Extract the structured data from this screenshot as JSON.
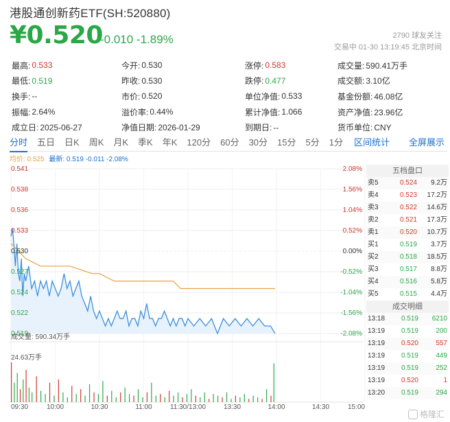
{
  "header": {
    "title": "港股通创新药ETF(SH:520880)",
    "price": "¥0.520",
    "change": "-0.010 -1.89%",
    "followers": "2790  球友关注",
    "trade_status": "交易中 01-30 13:19:45 北京时间"
  },
  "stats": [
    [
      {
        "label": "最高:",
        "value": "0.533",
        "color": "red"
      },
      {
        "label": "今开:",
        "value": "0.530",
        "color": ""
      },
      {
        "label": "涨停:",
        "value": "0.583",
        "color": "red"
      },
      {
        "label": "成交量:",
        "value": "590.41万手",
        "color": ""
      }
    ],
    [
      {
        "label": "最低:",
        "value": "0.519",
        "color": "green"
      },
      {
        "label": "昨收:",
        "value": "0.530",
        "color": ""
      },
      {
        "label": "跌停:",
        "value": "0.477",
        "color": "green"
      },
      {
        "label": "成交额:",
        "value": "3.10亿",
        "color": ""
      }
    ],
    [
      {
        "label": "换手:",
        "value": "--",
        "color": ""
      },
      {
        "label": "市价:",
        "value": "0.520",
        "color": ""
      },
      {
        "label": "单位净值:",
        "value": "0.533",
        "color": ""
      },
      {
        "label": "基金份额:",
        "value": "46.08亿",
        "color": ""
      }
    ],
    [
      {
        "label": "振幅:",
        "value": "2.64%",
        "color": ""
      },
      {
        "label": "溢价率:",
        "value": "0.44%",
        "color": ""
      },
      {
        "label": "累计净值:",
        "value": "1.066",
        "color": ""
      },
      {
        "label": "资产净值:",
        "value": "23.96亿",
        "color": ""
      }
    ],
    [
      {
        "label": "成立日:",
        "value": "2025-06-27",
        "color": ""
      },
      {
        "label": "净值日期:",
        "value": "2026-01-29",
        "color": ""
      },
      {
        "label": "到期日:",
        "value": "--",
        "color": ""
      },
      {
        "label": "货币单位:",
        "value": "CNY",
        "color": ""
      }
    ]
  ],
  "tabs": [
    "分时",
    "五日",
    "日K",
    "周K",
    "月K",
    "季K",
    "年K",
    "120分",
    "60分",
    "30分",
    "15分",
    "5分",
    "1分"
  ],
  "tab_links": {
    "range_stats": "区间统计",
    "fullscreen": "全屏展示"
  },
  "legend": {
    "avg": "均价: 0.525",
    "latest": "最新: 0.519 -0.011 -2.08%"
  },
  "colors": {
    "up": "#d2372b",
    "down": "#2aa847",
    "price_line": "#3a8fdb",
    "avg_line": "#e8a13b",
    "accent": "#1a6fd0"
  },
  "chart_data": {
    "type": "line",
    "y_ticks": [
      "0.541",
      "0.538",
      "0.536",
      "0.533",
      "0.530",
      "0.527",
      "0.524",
      "0.522",
      "0.519"
    ],
    "y_pct_ticks": [
      "2.08%",
      "1.56%",
      "1.04%",
      "0.52%",
      "0.00%",
      "-0.52%",
      "-1.04%",
      "-1.56%",
      "-2.08%"
    ],
    "x_ticks": [
      "09:30",
      "10:00",
      "10:30",
      "11:00",
      "11:30/13:00",
      "13:30",
      "14:00",
      "14:30",
      "15:00"
    ],
    "ylim": [
      0.519,
      0.541
    ],
    "prev_close": 0.53,
    "volume_label": "成交量: 590.34万手",
    "volume_max_label": "24.63万手",
    "series": [
      {
        "name": "最新",
        "x": [
          0,
          1,
          2,
          3,
          4,
          5,
          6,
          7,
          8,
          9,
          10,
          12,
          14,
          16,
          18,
          20,
          22,
          24,
          26,
          28,
          30,
          32,
          34,
          36,
          38,
          40,
          42,
          44,
          46,
          48,
          50,
          52,
          54,
          56,
          58,
          60,
          62,
          64,
          66,
          68,
          70,
          72,
          74,
          76,
          78,
          80,
          82,
          84,
          86,
          88,
          90,
          92,
          94,
          96,
          98,
          100,
          102,
          104,
          106,
          108,
          110,
          112,
          114,
          116,
          118,
          120,
          124,
          128,
          132,
          136,
          140,
          144,
          148,
          152,
          156,
          160,
          164,
          168,
          172,
          176,
          179
        ],
        "values": [
          0.532,
          0.533,
          0.531,
          0.528,
          0.531,
          0.527,
          0.526,
          0.529,
          0.524,
          0.527,
          0.526,
          0.528,
          0.525,
          0.526,
          0.524,
          0.526,
          0.525,
          0.526,
          0.524,
          0.526,
          0.525,
          0.524,
          0.525,
          0.527,
          0.525,
          0.526,
          0.524,
          0.525,
          0.526,
          0.524,
          0.523,
          0.522,
          0.524,
          0.522,
          0.521,
          0.522,
          0.521,
          0.52,
          0.521,
          0.52,
          0.521,
          0.522,
          0.521,
          0.521,
          0.522,
          0.52,
          0.521,
          0.521,
          0.52,
          0.522,
          0.521,
          0.523,
          0.521,
          0.521,
          0.52,
          0.521,
          0.521,
          0.522,
          0.521,
          0.52,
          0.521,
          0.52,
          0.521,
          0.521,
          0.52,
          0.521,
          0.52,
          0.521,
          0.52,
          0.521,
          0.519,
          0.521,
          0.52,
          0.521,
          0.52,
          0.521,
          0.52,
          0.521,
          0.52,
          0.52,
          0.519
        ]
      },
      {
        "name": "均价",
        "x": [
          0,
          10,
          20,
          30,
          40,
          55,
          60,
          70,
          80,
          100,
          110,
          115,
          120,
          140,
          160,
          179
        ],
        "values": [
          0.531,
          0.529,
          0.528,
          0.528,
          0.528,
          0.527,
          0.527,
          0.526,
          0.526,
          0.526,
          0.526,
          0.525,
          0.525,
          0.525,
          0.525,
          0.525
        ]
      }
    ],
    "volume": {
      "x": [
        0,
        2,
        4,
        6,
        8,
        10,
        12,
        14,
        17,
        20,
        23,
        26,
        29,
        32,
        35,
        38,
        41,
        44,
        47,
        50,
        53,
        56,
        59,
        62,
        65,
        68,
        71,
        74,
        77,
        80,
        83,
        86,
        89,
        92,
        95,
        98,
        101,
        104,
        107,
        110,
        113,
        116,
        119,
        122,
        125,
        128,
        131,
        134,
        137,
        140,
        143,
        146,
        149,
        152,
        155,
        158,
        161,
        164,
        167,
        170,
        173,
        176,
        178
      ],
      "values": [
        24.6,
        12,
        18,
        8,
        14,
        20,
        9,
        6,
        16,
        7,
        5,
        12,
        4,
        14,
        6,
        3,
        10,
        5,
        8,
        4,
        11,
        6,
        5,
        13,
        4,
        7,
        3,
        6,
        9,
        5,
        4,
        8,
        3,
        6,
        12,
        4,
        5,
        3,
        7,
        4,
        6,
        3,
        5,
        8,
        4,
        3,
        6,
        2,
        5,
        4,
        3,
        6,
        2,
        4,
        3,
        5,
        2,
        4,
        3,
        2,
        8,
        4,
        24
      ],
      "colors": [
        "r",
        "g",
        "g",
        "r",
        "g",
        "r",
        "g",
        "g",
        "r",
        "g",
        "g",
        "r",
        "g",
        "r",
        "g",
        "g",
        "r",
        "g",
        "r",
        "g",
        "g",
        "r",
        "g",
        "g",
        "r",
        "g",
        "g",
        "r",
        "g",
        "g",
        "r",
        "g",
        "g",
        "r",
        "g",
        "g",
        "r",
        "g",
        "r",
        "g",
        "g",
        "r",
        "g",
        "g",
        "r",
        "g",
        "g",
        "r",
        "g",
        "g",
        "r",
        "g",
        "g",
        "r",
        "g",
        "g",
        "r",
        "g",
        "g",
        "r",
        "g",
        "r",
        "g"
      ]
    }
  },
  "orderbook": {
    "title": "五档盘口",
    "rows": [
      {
        "side": "卖5",
        "price": "0.524",
        "vol": "9.2万",
        "color": "red"
      },
      {
        "side": "卖4",
        "price": "0.523",
        "vol": "17.2万",
        "color": "red"
      },
      {
        "side": "卖3",
        "price": "0.522",
        "vol": "14.6万",
        "color": "red"
      },
      {
        "side": "卖2",
        "price": "0.521",
        "vol": "17.3万",
        "color": "red"
      },
      {
        "side": "卖1",
        "price": "0.520",
        "vol": "10.7万",
        "color": "red"
      },
      {
        "side": "买1",
        "price": "0.519",
        "vol": "3.7万",
        "color": "green"
      },
      {
        "side": "买2",
        "price": "0.518",
        "vol": "18.5万",
        "color": "green"
      },
      {
        "side": "买3",
        "price": "0.517",
        "vol": "8.8万",
        "color": "green"
      },
      {
        "side": "买4",
        "price": "0.516",
        "vol": "5.8万",
        "color": "green"
      },
      {
        "side": "买5",
        "price": "0.515",
        "vol": "4.4万",
        "color": "green"
      }
    ]
  },
  "trades": {
    "title": "成交明细",
    "rows": [
      {
        "time": "13:18",
        "price": "0.519",
        "vol": "6210",
        "color": "green",
        "vcolor": "green"
      },
      {
        "time": "13:19",
        "price": "0.519",
        "vol": "200",
        "color": "green",
        "vcolor": "green"
      },
      {
        "time": "13:19",
        "price": "0.520",
        "vol": "557",
        "color": "red",
        "vcolor": "red"
      },
      {
        "time": "13:19",
        "price": "0.519",
        "vol": "449",
        "color": "green",
        "vcolor": "green"
      },
      {
        "time": "13:19",
        "price": "0.519",
        "vol": "252",
        "color": "green",
        "vcolor": "green"
      },
      {
        "time": "13:19",
        "price": "0.520",
        "vol": "1",
        "color": "red",
        "vcolor": "red"
      },
      {
        "time": "13:20",
        "price": "0.519",
        "vol": "294",
        "color": "green",
        "vcolor": "green"
      }
    ]
  },
  "watermark": "格隆汇"
}
